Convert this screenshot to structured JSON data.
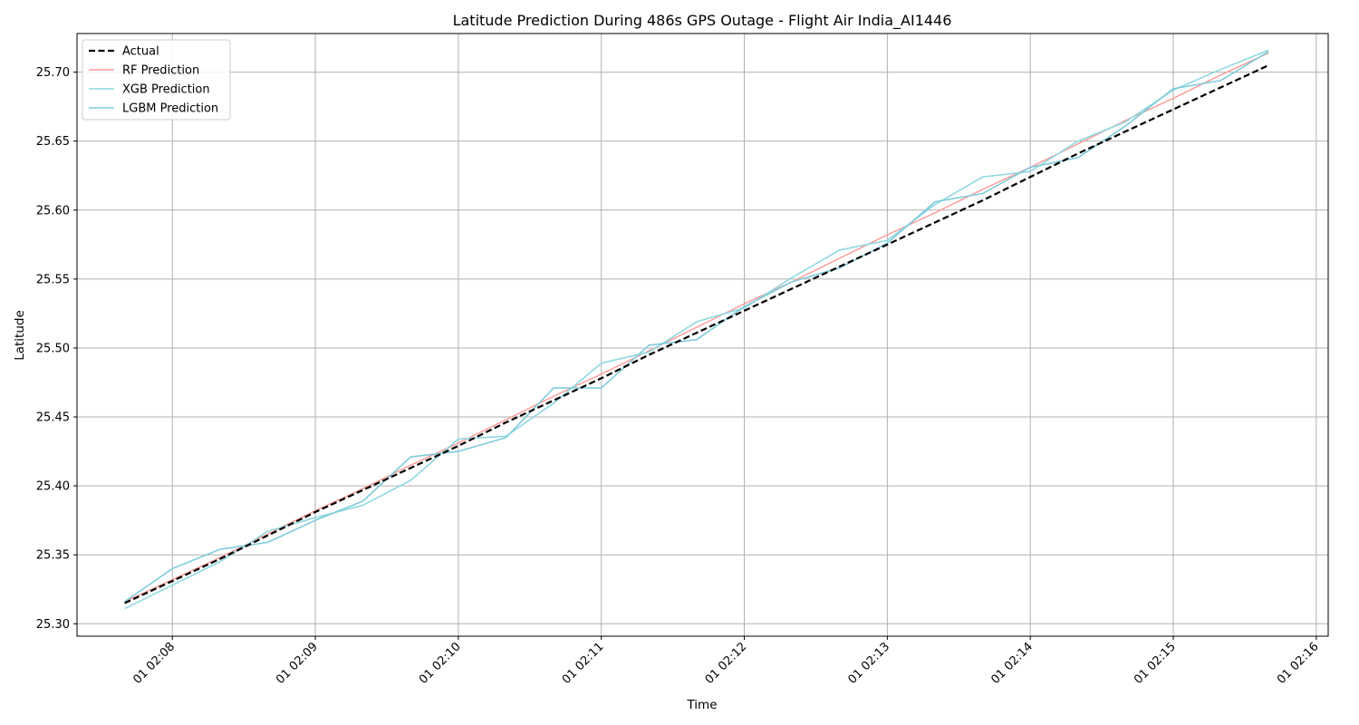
{
  "chart_data": {
    "type": "line",
    "title": "Latitude Prediction During 486s GPS Outage - Flight Air India_AI1446",
    "xlabel": "Time",
    "ylabel": "Latitude",
    "x_axis_type": "time",
    "xlim": [
      "01 02:07:20",
      "01 02:16:05"
    ],
    "ylim": [
      25.291,
      25.728
    ],
    "x_ticks": [
      {
        "t": "01 02:08:00",
        "label": "01 02:08"
      },
      {
        "t": "01 02:09:00",
        "label": "01 02:09"
      },
      {
        "t": "01 02:10:00",
        "label": "01 02:10"
      },
      {
        "t": "01 02:11:00",
        "label": "01 02:11"
      },
      {
        "t": "01 02:12:00",
        "label": "01 02:12"
      },
      {
        "t": "01 02:13:00",
        "label": "01 02:13"
      },
      {
        "t": "01 02:14:00",
        "label": "01 02:14"
      },
      {
        "t": "01 02:15:00",
        "label": "01 02:15"
      },
      {
        "t": "01 02:16:00",
        "label": "01 02:16"
      }
    ],
    "y_ticks": [
      "25.30",
      "25.35",
      "25.40",
      "25.45",
      "25.50",
      "25.55",
      "25.60",
      "25.65",
      "25.70"
    ],
    "grid": true,
    "legend_position": "top-left",
    "x": [
      "01 02:07:40",
      "01 02:08:00",
      "01 02:08:20",
      "01 02:08:40",
      "01 02:09:00",
      "01 02:09:20",
      "01 02:09:40",
      "01 02:10:00",
      "01 02:10:20",
      "01 02:10:40",
      "01 02:11:00",
      "01 02:11:20",
      "01 02:11:40",
      "01 02:12:00",
      "01 02:12:20",
      "01 02:12:40",
      "01 02:13:00",
      "01 02:13:20",
      "01 02:13:40",
      "01 02:14:00",
      "01 02:14:20",
      "01 02:14:40",
      "01 02:15:00",
      "01 02:15:20",
      "01 02:15:40"
    ],
    "series": [
      {
        "name": "Actual",
        "color": "#000000",
        "dashed": true,
        "width": 2.2,
        "values": [
          25.315,
          25.331,
          25.347,
          25.364,
          25.381,
          25.397,
          25.413,
          25.429,
          25.446,
          25.462,
          25.478,
          25.495,
          25.511,
          25.527,
          25.543,
          25.559,
          25.575,
          25.591,
          25.607,
          25.624,
          25.641,
          25.657,
          25.673,
          25.689,
          25.705
        ]
      },
      {
        "name": "RF Prediction",
        "color": "#ff9896",
        "dashed": false,
        "width": 1.4,
        "values": [
          25.316,
          25.332,
          25.348,
          25.365,
          25.382,
          25.398,
          25.415,
          25.431,
          25.448,
          25.465,
          25.481,
          25.498,
          25.515,
          25.532,
          25.548,
          25.565,
          25.582,
          25.598,
          25.615,
          25.631,
          25.648,
          25.665,
          25.681,
          25.698,
          25.714
        ]
      },
      {
        "name": "XGB Prediction",
        "color": "#8fd8e0",
        "dashed": false,
        "width": 1.6,
        "values": [
          25.311,
          25.328,
          25.345,
          25.367,
          25.377,
          25.386,
          25.404,
          25.434,
          25.436,
          25.46,
          25.489,
          25.497,
          25.519,
          25.529,
          25.551,
          25.571,
          25.578,
          25.604,
          25.624,
          25.628,
          25.65,
          25.664,
          25.687,
          25.702,
          25.716
        ]
      },
      {
        "name": "LGBM Prediction",
        "color": "#7fcbdb",
        "dashed": false,
        "width": 1.6,
        "values": [
          25.316,
          25.34,
          25.354,
          25.359,
          25.375,
          25.389,
          25.421,
          25.425,
          25.435,
          25.471,
          25.471,
          25.502,
          25.506,
          25.53,
          25.548,
          25.558,
          25.576,
          25.606,
          25.612,
          25.631,
          25.638,
          25.661,
          25.688,
          25.694,
          25.715
        ]
      }
    ]
  }
}
